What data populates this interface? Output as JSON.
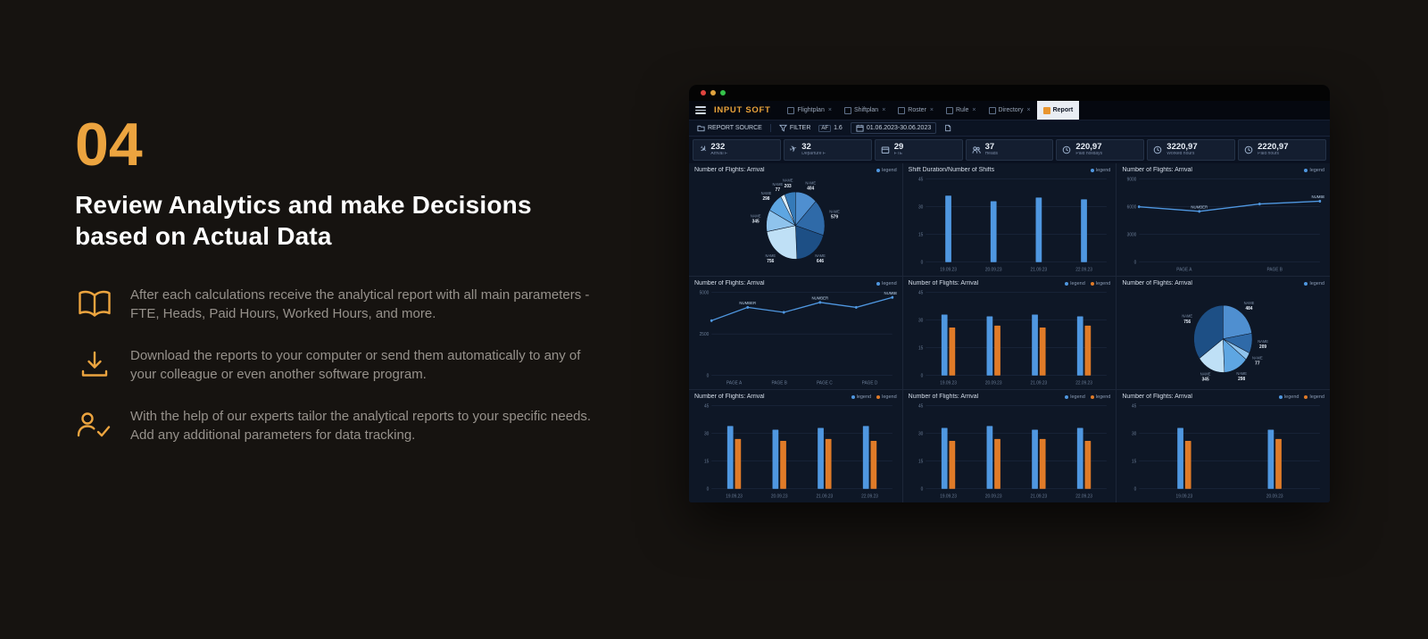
{
  "intro": {
    "step": "04",
    "title_line1": "Review Analytics and make Decisions",
    "title_line2": "based on Actual Data",
    "accent_color": "#eca43f",
    "features": [
      {
        "icon": "book-icon",
        "text": "After each calculations receive the analytical report with all main parameters - FTE, Heads, Paid Hours, Worked Hours, and more."
      },
      {
        "icon": "download-icon",
        "text": "Download the reports to your computer or send them automatically to any of your colleague or even another software program."
      },
      {
        "icon": "expert-check-icon",
        "text": "With the help of our experts tailor the analytical reports to your specific needs. Add any additional parameters for data tracking."
      }
    ]
  },
  "window": {
    "logo": "INPUT SOFT",
    "tab_close": "×",
    "tabs": [
      {
        "label": "Flightplan",
        "active": false
      },
      {
        "label": "Shiftplan",
        "active": false
      },
      {
        "label": "Roster",
        "active": false
      },
      {
        "label": "Rule",
        "active": false
      },
      {
        "label": "Directory",
        "active": false
      },
      {
        "label": "Report",
        "active": true
      }
    ],
    "toolbar": {
      "report_source": "REPORT SOURCE",
      "filter": "FILTER",
      "af_badge": "AF",
      "af_value": "1.6",
      "date_range": "01.06.2023-30.06.2023"
    },
    "kpis": [
      {
        "icon": "plane-arrival-icon",
        "value": "232",
        "label": "Arrival F"
      },
      {
        "icon": "plane-departure-icon",
        "value": "32",
        "label": "Departure F"
      },
      {
        "icon": "badge-icon",
        "value": "29",
        "label": "FTE"
      },
      {
        "icon": "people-icon",
        "value": "37",
        "label": "Heads"
      },
      {
        "icon": "clock-icon",
        "value": "220,97",
        "label": "Paid holidays"
      },
      {
        "icon": "clock-icon",
        "value": "3220,97",
        "label": "Worked hours"
      },
      {
        "icon": "clock-icon",
        "value": "2220,97",
        "label": "Paid hours"
      }
    ],
    "colors": {
      "blue": "#4f97e0",
      "orange": "#e07b28"
    }
  },
  "charts": [
    {
      "type": "pie",
      "title": "Number of Flights: Arrival",
      "legend": [
        {
          "color": "#4f97e0",
          "label": "legend"
        }
      ],
      "colors": [
        "#4f8fd0",
        "#2f6aa8",
        "#1d4f85",
        "#bfe0f6",
        "#8fc3ec",
        "#5ea6e2",
        "#dceefb",
        "#357ab8"
      ],
      "slices": [
        {
          "name": "NAME",
          "value": 404
        },
        {
          "name": "NAME",
          "value": 579
        },
        {
          "name": "NAME",
          "value": 646
        },
        {
          "name": "NAME",
          "value": 756
        },
        {
          "name": "NAME",
          "value": 345
        },
        {
          "name": "NAME",
          "value": 298
        },
        {
          "name": "NAME",
          "value": 77
        },
        {
          "name": "NAME",
          "value": 203
        }
      ]
    },
    {
      "type": "bar",
      "title": "Shift Duration/Number of Shifts",
      "legend": [
        {
          "color": "#4f97e0",
          "label": "legend"
        }
      ],
      "categories": [
        "19.09.23",
        "20.09.23",
        "21.09.23",
        "22.09.23"
      ],
      "yticks": [
        0,
        15,
        30,
        45
      ],
      "series": [
        {
          "color": "#4f97e0",
          "values": [
            36,
            33,
            35,
            34
          ]
        }
      ]
    },
    {
      "type": "line",
      "title": "Number of Flights: Arrival",
      "legend": [
        {
          "color": "#4f97e0",
          "label": "legend"
        }
      ],
      "categories": [
        "PAGE A",
        "PAGE B"
      ],
      "yticks": [
        0,
        3000,
        6000,
        9000
      ],
      "series": [
        {
          "color": "#4f97e0",
          "values": [
            6000,
            5500,
            6300,
            6600
          ],
          "labels": [
            null,
            "NUMBER",
            null,
            "NUMBER"
          ]
        }
      ]
    },
    {
      "type": "line",
      "title": "Number of Flights: Arrival",
      "legend": [
        {
          "color": "#4f97e0",
          "label": "legend"
        }
      ],
      "categories": [
        "PAGE A",
        "PAGE B",
        "PAGE C",
        "PAGE D"
      ],
      "yticks": [
        0,
        2500,
        5000
      ],
      "series": [
        {
          "color": "#4f97e0",
          "values": [
            3300,
            4100,
            3800,
            4400,
            4100,
            4700
          ],
          "labels": [
            null,
            "NUMBER",
            null,
            "NUMBER",
            null,
            "NUMBER"
          ]
        }
      ]
    },
    {
      "type": "bar",
      "title": "Number of Flights: Arrival",
      "legend": [
        {
          "color": "#4f97e0",
          "label": "legend"
        },
        {
          "color": "#e07b28",
          "label": "legend"
        }
      ],
      "categories": [
        "19.09.23",
        "20.09.23",
        "21.09.23",
        "22.09.23"
      ],
      "yticks": [
        0,
        15,
        30,
        45
      ],
      "series": [
        {
          "color": "#4f97e0",
          "values": [
            33,
            32,
            33,
            32
          ]
        },
        {
          "color": "#e07b28",
          "values": [
            26,
            27,
            26,
            27
          ]
        }
      ]
    },
    {
      "type": "pie",
      "title": "Number of Flights: Arrival",
      "legend": [
        {
          "color": "#4f97e0",
          "label": "legend"
        }
      ],
      "colors": [
        "#4f8fd0",
        "#2f6aa8",
        "#8fc3ec",
        "#5ea6e2",
        "#bfe0f6",
        "#1d4f85"
      ],
      "slices": [
        {
          "name": "NAME",
          "value": 484
        },
        {
          "name": "NAME",
          "value": 209
        },
        {
          "name": "NAME",
          "value": 77
        },
        {
          "name": "NAME",
          "value": 298
        },
        {
          "name": "NAME",
          "value": 345
        },
        {
          "name": "NAME",
          "value": 756
        }
      ]
    },
    {
      "type": "bar",
      "title": "Number of Flights: Arrival",
      "legend": [
        {
          "color": "#4f97e0",
          "label": "legend"
        },
        {
          "color": "#e07b28",
          "label": "legend"
        }
      ],
      "categories": [
        "19.09.23",
        "20.09.23",
        "21.09.23",
        "22.09.23"
      ],
      "yticks": [
        0,
        15,
        30,
        45
      ],
      "series": [
        {
          "color": "#4f97e0",
          "values": [
            34,
            32,
            33,
            34
          ]
        },
        {
          "color": "#e07b28",
          "values": [
            27,
            26,
            27,
            26
          ]
        }
      ]
    },
    {
      "type": "bar",
      "title": "Number of Flights: Arrival",
      "legend": [
        {
          "color": "#4f97e0",
          "label": "legend"
        },
        {
          "color": "#e07b28",
          "label": "legend"
        }
      ],
      "categories": [
        "19.09.23",
        "20.09.23",
        "21.09.23",
        "22.09.23"
      ],
      "yticks": [
        0,
        15,
        30,
        45
      ],
      "series": [
        {
          "color": "#4f97e0",
          "values": [
            33,
            34,
            32,
            33
          ]
        },
        {
          "color": "#e07b28",
          "values": [
            26,
            27,
            27,
            26
          ]
        }
      ]
    },
    {
      "type": "bar",
      "title": "Number of Flights: Arrival",
      "legend": [
        {
          "color": "#4f97e0",
          "label": "legend"
        },
        {
          "color": "#e07b28",
          "label": "legend"
        }
      ],
      "categories": [
        "19.09.23",
        "20.09.23"
      ],
      "yticks": [
        0,
        15,
        30,
        45
      ],
      "series": [
        {
          "color": "#4f97e0",
          "values": [
            33,
            32
          ]
        },
        {
          "color": "#e07b28",
          "values": [
            26,
            27
          ]
        }
      ]
    }
  ]
}
